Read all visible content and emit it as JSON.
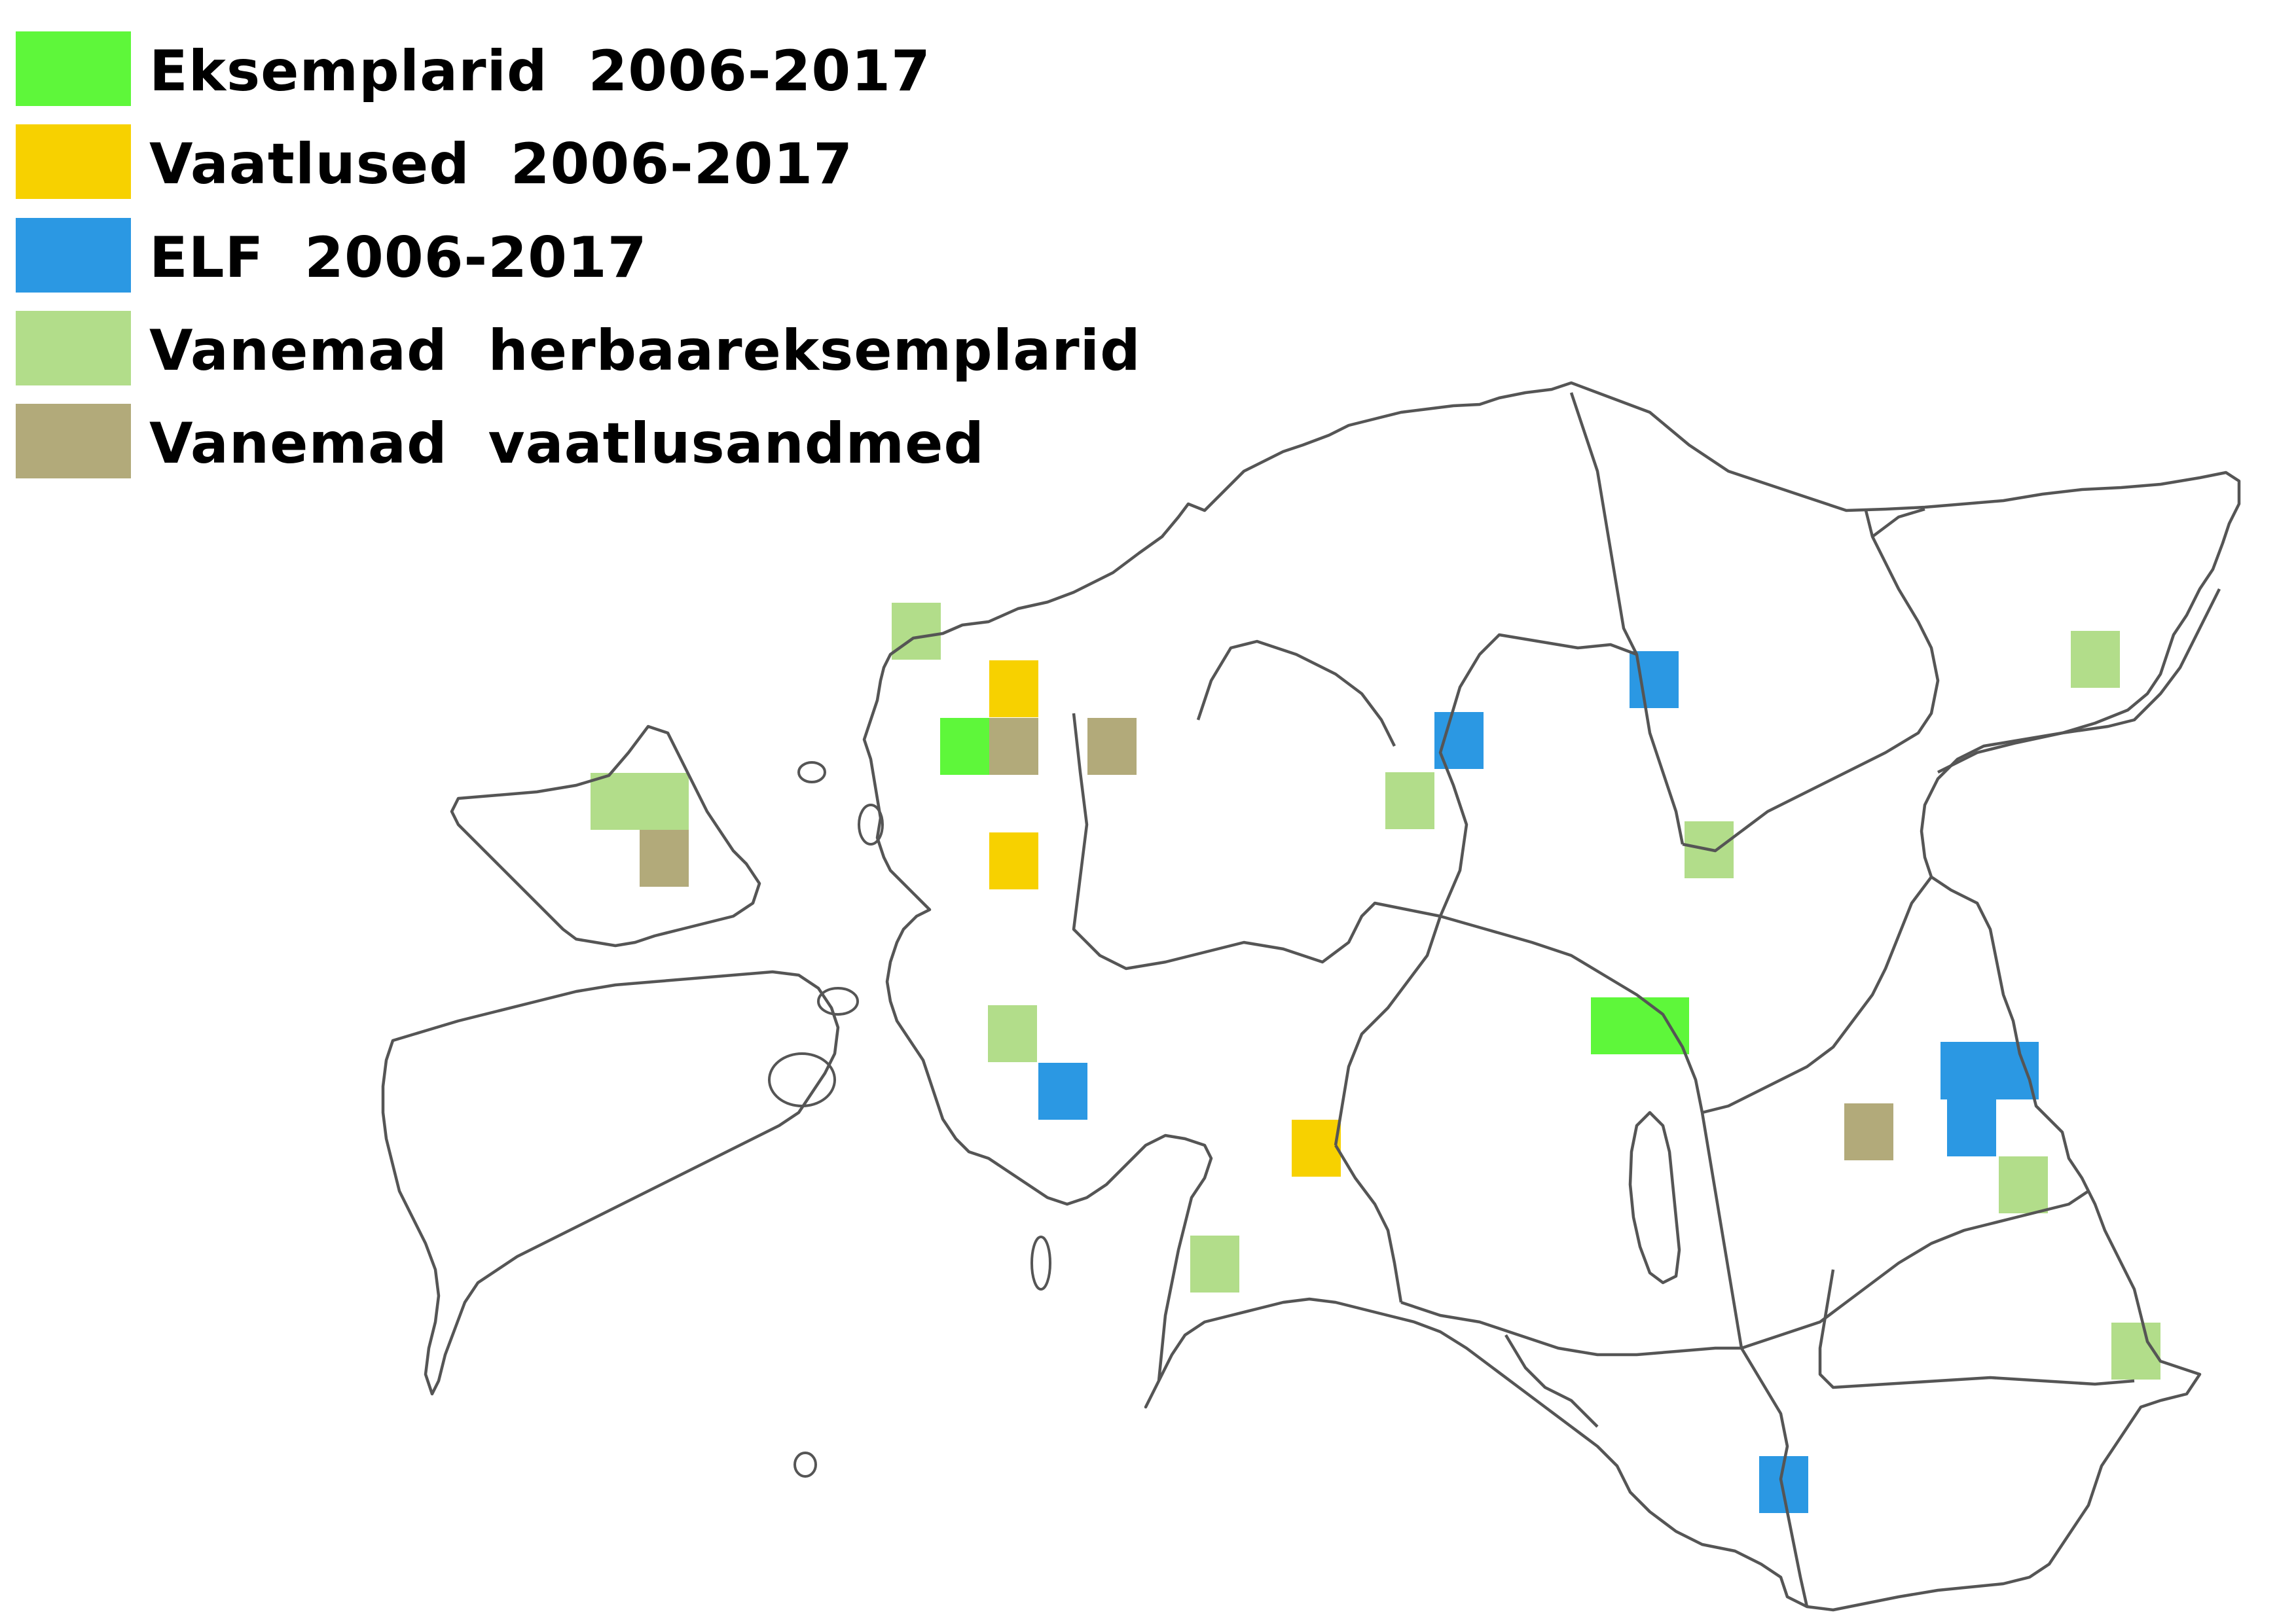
{
  "legend": {
    "items": [
      {
        "label": "Eksemplarid  2006-2017",
        "color": "#5ef73a"
      },
      {
        "label": "Vaatlused  2006-2017",
        "color": "#f7d100"
      },
      {
        "label": "ELF  2006-2017",
        "color": "#2b98e3"
      },
      {
        "label": "Vanemad  herbaareksemplarid",
        "color": "#b2dd8a"
      },
      {
        "label": "Vanemad  vaatlusandmed",
        "color": "#b2aa7a"
      }
    ]
  },
  "map": {
    "outline_color": "#555555"
  }
}
